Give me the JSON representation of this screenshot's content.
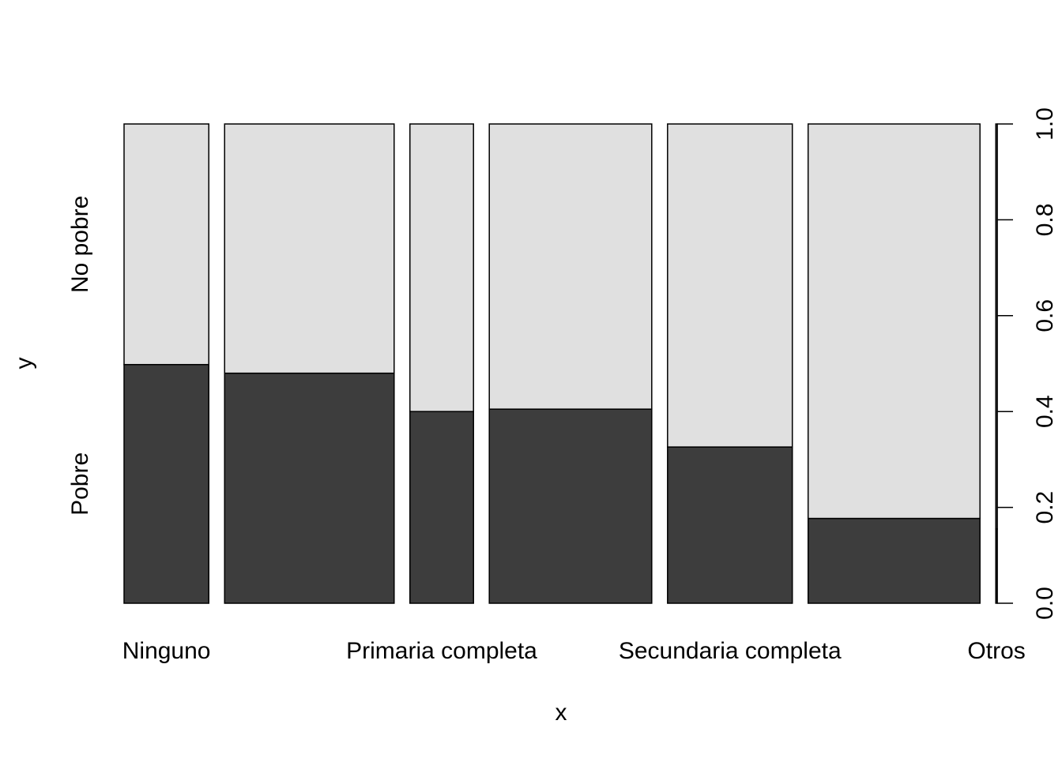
{
  "chart_data": {
    "type": "spineplot",
    "xlabel": "x",
    "ylabel": "y",
    "x_tick_labels": [
      "Ninguno",
      "Primaria completa",
      "Secundaria completa",
      "Otros"
    ],
    "x_tick_label_category_index": [
      0,
      2,
      4,
      6
    ],
    "categories": [
      "Ninguno",
      "",
      "Primaria completa",
      "",
      "Secundaria completa",
      "",
      "Otros"
    ],
    "category_share": [
      0.18,
      0.36,
      0.135,
      0.345,
      0.265,
      0.365,
      0.003
    ],
    "levels": [
      "Pobre",
      "No pobre"
    ],
    "series": [
      {
        "name": "Pobre",
        "values": [
          0.498,
          0.48,
          0.4,
          0.405,
          0.326,
          0.177,
          0.155
        ]
      },
      {
        "name": "No pobre",
        "values": [
          0.502,
          0.52,
          0.6,
          0.595,
          0.674,
          0.823,
          0.845
        ]
      }
    ],
    "ylim": [
      0,
      1
    ],
    "y_ticks": [
      "0.0",
      "0.2",
      "0.4",
      "0.6",
      "0.8",
      "1.0"
    ],
    "colors": {
      "Pobre": "#3d3d3d",
      "No pobre": "#e0e0e0"
    },
    "grid": false,
    "legend": "none"
  }
}
